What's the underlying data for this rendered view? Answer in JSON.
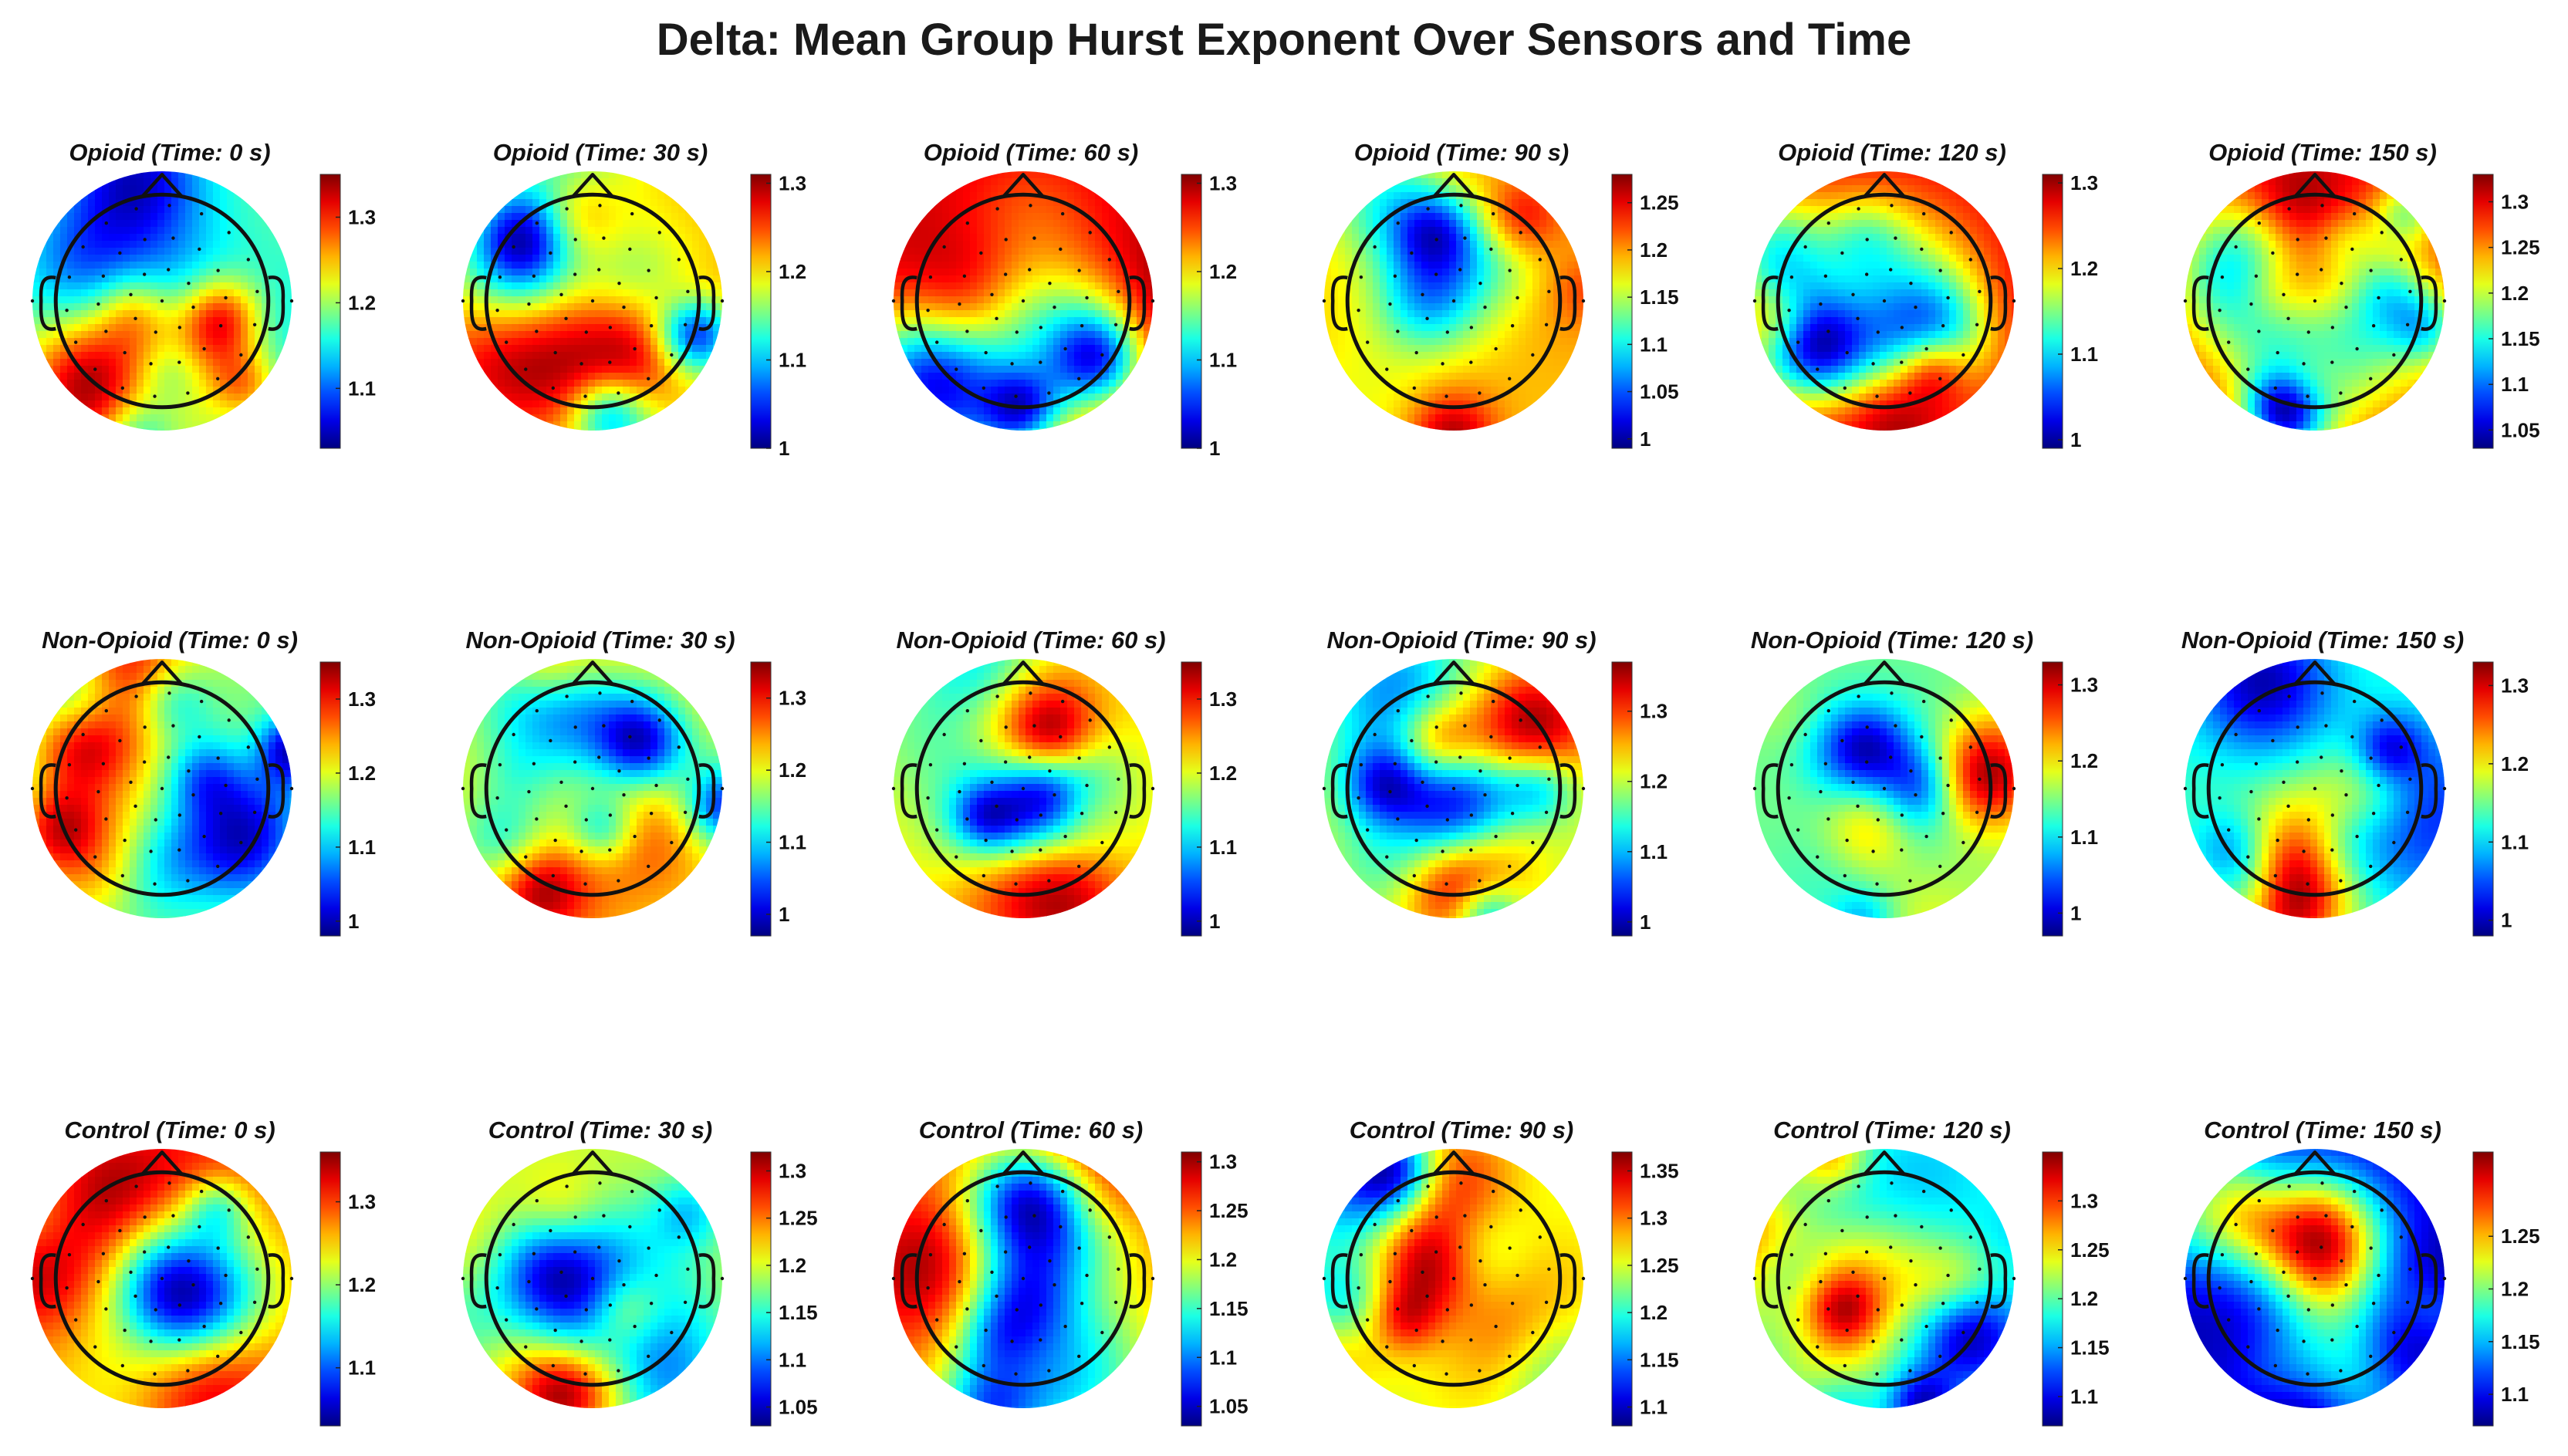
{
  "title": "Delta: Mean Group Hurst Exponent Over Sensors and Time",
  "chart_data": {
    "type": "heatmap",
    "title": "Delta: Mean Group Hurst Exponent Over Sensors and Time",
    "colormap": "jet",
    "rows": [
      "Opioid",
      "Non-Opioid",
      "Control"
    ],
    "times_s": [
      0,
      30,
      60,
      90,
      120,
      150
    ],
    "panels": [
      {
        "title": "Opioid (Time: 0 s)",
        "cmin": 1.03,
        "cmax": 1.35,
        "ticks": [
          "1.1",
          "1.2",
          "1.3"
        ],
        "tick_values": [
          1.1,
          1.2,
          1.3
        ],
        "seed": 11
      },
      {
        "title": "Opioid (Time: 30 s)",
        "cmin": 1.0,
        "cmax": 1.31,
        "ticks": [
          "1",
          "1.1",
          "1.2",
          "1.3"
        ],
        "tick_values": [
          1.0,
          1.1,
          1.2,
          1.3
        ],
        "seed": 23
      },
      {
        "title": "Opioid (Time: 60 s)",
        "cmin": 1.0,
        "cmax": 1.31,
        "ticks": [
          "1",
          "1.1",
          "1.2",
          "1.3"
        ],
        "tick_values": [
          1.0,
          1.1,
          1.2,
          1.3
        ],
        "seed": 37
      },
      {
        "title": "Opioid (Time: 90 s)",
        "cmin": 0.99,
        "cmax": 1.28,
        "ticks": [
          "1",
          "1.05",
          "1.1",
          "1.15",
          "1.2",
          "1.25"
        ],
        "tick_values": [
          1.0,
          1.05,
          1.1,
          1.15,
          1.2,
          1.25
        ],
        "seed": 41
      },
      {
        "title": "Opioid (Time: 120 s)",
        "cmin": 0.99,
        "cmax": 1.31,
        "ticks": [
          "1",
          "1.1",
          "1.2",
          "1.3"
        ],
        "tick_values": [
          1.0,
          1.1,
          1.2,
          1.3
        ],
        "seed": 53
      },
      {
        "title": "Opioid (Time: 150 s)",
        "cmin": 1.03,
        "cmax": 1.33,
        "ticks": [
          "1.05",
          "1.1",
          "1.15",
          "1.2",
          "1.25",
          "1.3"
        ],
        "tick_values": [
          1.05,
          1.1,
          1.15,
          1.2,
          1.25,
          1.3
        ],
        "seed": 67
      },
      {
        "title": "Non-Opioid (Time: 0 s)",
        "cmin": 0.98,
        "cmax": 1.35,
        "ticks": [
          "1",
          "1.1",
          "1.2",
          "1.3"
        ],
        "tick_values": [
          1.0,
          1.1,
          1.2,
          1.3
        ],
        "seed": 71
      },
      {
        "title": "Non-Opioid (Time: 30 s)",
        "cmin": 0.97,
        "cmax": 1.35,
        "ticks": [
          "1",
          "1.1",
          "1.2",
          "1.3"
        ],
        "tick_values": [
          1.0,
          1.1,
          1.2,
          1.3
        ],
        "seed": 83
      },
      {
        "title": "Non-Opioid (Time: 60 s)",
        "cmin": 0.98,
        "cmax": 1.35,
        "ticks": [
          "1",
          "1.1",
          "1.2",
          "1.3"
        ],
        "tick_values": [
          1.0,
          1.1,
          1.2,
          1.3
        ],
        "seed": 97
      },
      {
        "title": "Non-Opioid (Time: 90 s)",
        "cmin": 0.98,
        "cmax": 1.37,
        "ticks": [
          "1",
          "1.1",
          "1.2",
          "1.3"
        ],
        "tick_values": [
          1.0,
          1.1,
          1.2,
          1.3
        ],
        "seed": 101
      },
      {
        "title": "Non-Opioid (Time: 120 s)",
        "cmin": 0.97,
        "cmax": 1.33,
        "ticks": [
          "1",
          "1.1",
          "1.2",
          "1.3"
        ],
        "tick_values": [
          1.0,
          1.1,
          1.2,
          1.3
        ],
        "seed": 113
      },
      {
        "title": "Non-Opioid (Time: 150 s)",
        "cmin": 0.98,
        "cmax": 1.33,
        "ticks": [
          "1",
          "1.1",
          "1.2",
          "1.3"
        ],
        "tick_values": [
          1.0,
          1.1,
          1.2,
          1.3
        ],
        "seed": 127
      },
      {
        "title": "Control (Time: 0 s)",
        "cmin": 1.03,
        "cmax": 1.36,
        "ticks": [
          "1.1",
          "1.2",
          "1.3"
        ],
        "tick_values": [
          1.1,
          1.2,
          1.3
        ],
        "seed": 131
      },
      {
        "title": "Control (Time: 30 s)",
        "cmin": 1.03,
        "cmax": 1.32,
        "ticks": [
          "1.05",
          "1.1",
          "1.15",
          "1.2",
          "1.25",
          "1.3"
        ],
        "tick_values": [
          1.05,
          1.1,
          1.15,
          1.2,
          1.25,
          1.3
        ],
        "seed": 149
      },
      {
        "title": "Control (Time: 60 s)",
        "cmin": 1.03,
        "cmax": 1.31,
        "ticks": [
          "1.05",
          "1.1",
          "1.15",
          "1.2",
          "1.25",
          "1.3"
        ],
        "tick_values": [
          1.05,
          1.1,
          1.15,
          1.2,
          1.25,
          1.3
        ],
        "seed": 151
      },
      {
        "title": "Control (Time: 90 s)",
        "cmin": 1.08,
        "cmax": 1.37,
        "ticks": [
          "1.1",
          "1.15",
          "1.2",
          "1.25",
          "1.3",
          "1.35"
        ],
        "tick_values": [
          1.1,
          1.15,
          1.2,
          1.25,
          1.3,
          1.35
        ],
        "seed": 163
      },
      {
        "title": "Control (Time: 120 s)",
        "cmin": 1.07,
        "cmax": 1.35,
        "ticks": [
          "1.1",
          "1.15",
          "1.2",
          "1.25",
          "1.3"
        ],
        "tick_values": [
          1.1,
          1.15,
          1.2,
          1.25,
          1.3
        ],
        "seed": 173
      },
      {
        "title": "Control (Time: 150 s)",
        "cmin": 1.07,
        "cmax": 1.33,
        "ticks": [
          "1.1",
          "1.15",
          "1.2",
          "1.25"
        ],
        "tick_values": [
          1.1,
          1.15,
          1.2,
          1.25
        ],
        "seed": 181
      }
    ]
  }
}
